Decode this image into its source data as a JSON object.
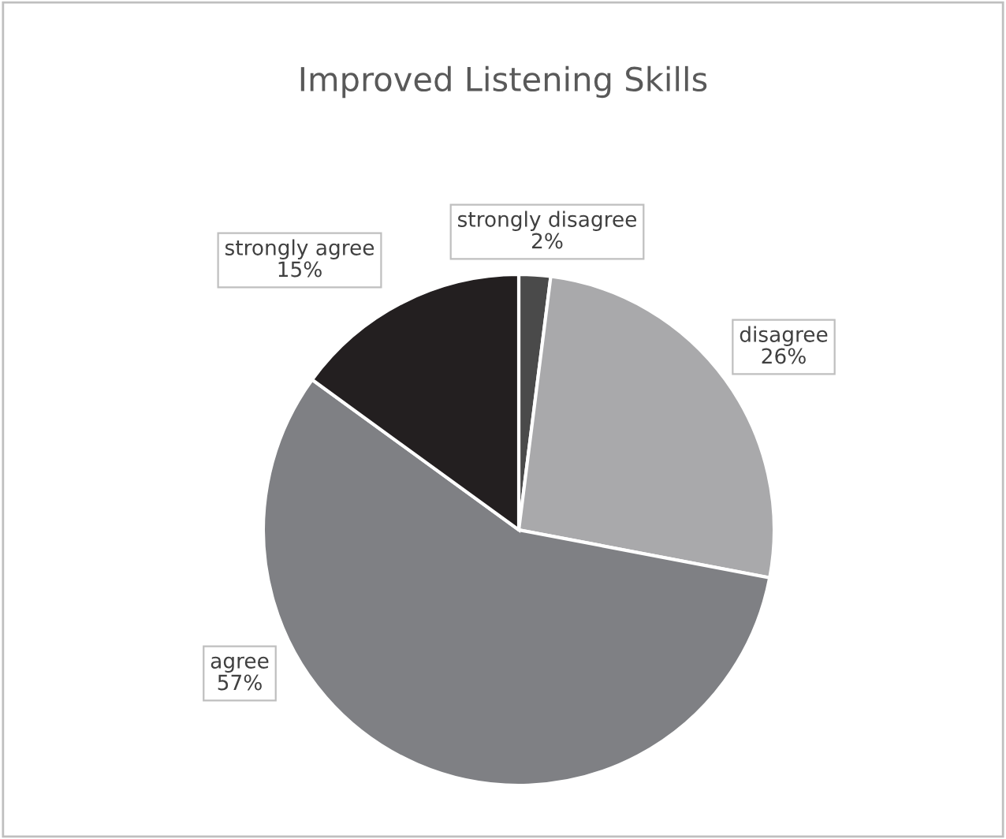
{
  "chart_data": {
    "type": "pie",
    "title": "Improved Listening Skills",
    "categories": [
      "strongly disagree",
      "disagree",
      "agree",
      "strongly agree"
    ],
    "values": [
      2,
      26,
      57,
      15
    ],
    "value_labels": [
      "2%",
      "26%",
      "57%",
      "15%"
    ],
    "colors": [
      "#4a4a4a",
      "#a9a9ab",
      "#7f8084",
      "#231f20"
    ],
    "legend": false
  }
}
